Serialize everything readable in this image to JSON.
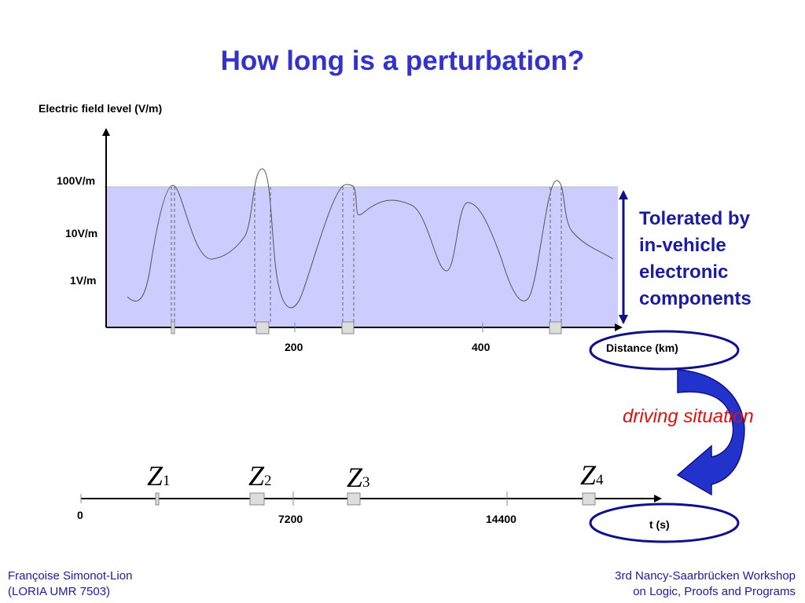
{
  "title": "How long is a perturbation?",
  "chart": {
    "y_axis_label": "Electric field level (V/m)",
    "y_ticks": [
      "100V/m",
      "10V/m",
      "1V/m"
    ],
    "x_ticks": [
      "200",
      "400"
    ],
    "x_axis_label": "Distance (km)",
    "tolerance_band_color": "#ccccff"
  },
  "tolerance_note": {
    "lines": [
      "Tolerated by",
      "in-vehicle",
      "electronic",
      "components"
    ],
    "color": "#1b1ba0"
  },
  "driving_situation": "driving situation",
  "timeline": {
    "zones": [
      {
        "letter": "Z",
        "index": "1"
      },
      {
        "letter": "Z",
        "index": "2"
      },
      {
        "letter": "Z",
        "index": "3"
      },
      {
        "letter": "Z",
        "index": "4"
      }
    ],
    "origin_label": "0",
    "ticks": [
      "7200",
      "14400"
    ],
    "axis_label": "t (s)"
  },
  "footer": {
    "left": [
      "Françoise Simonot-Lion",
      "(LORIA UMR 7503)"
    ],
    "right": [
      "3rd Nancy-Saarbrücken Workshop",
      "on Logic, Proofs and Programs"
    ]
  },
  "colors": {
    "title": "#3333cc",
    "accent_blue": "#1b1ba0",
    "highlight_red": "#e01010",
    "arrow_blue": "#2233cc"
  }
}
